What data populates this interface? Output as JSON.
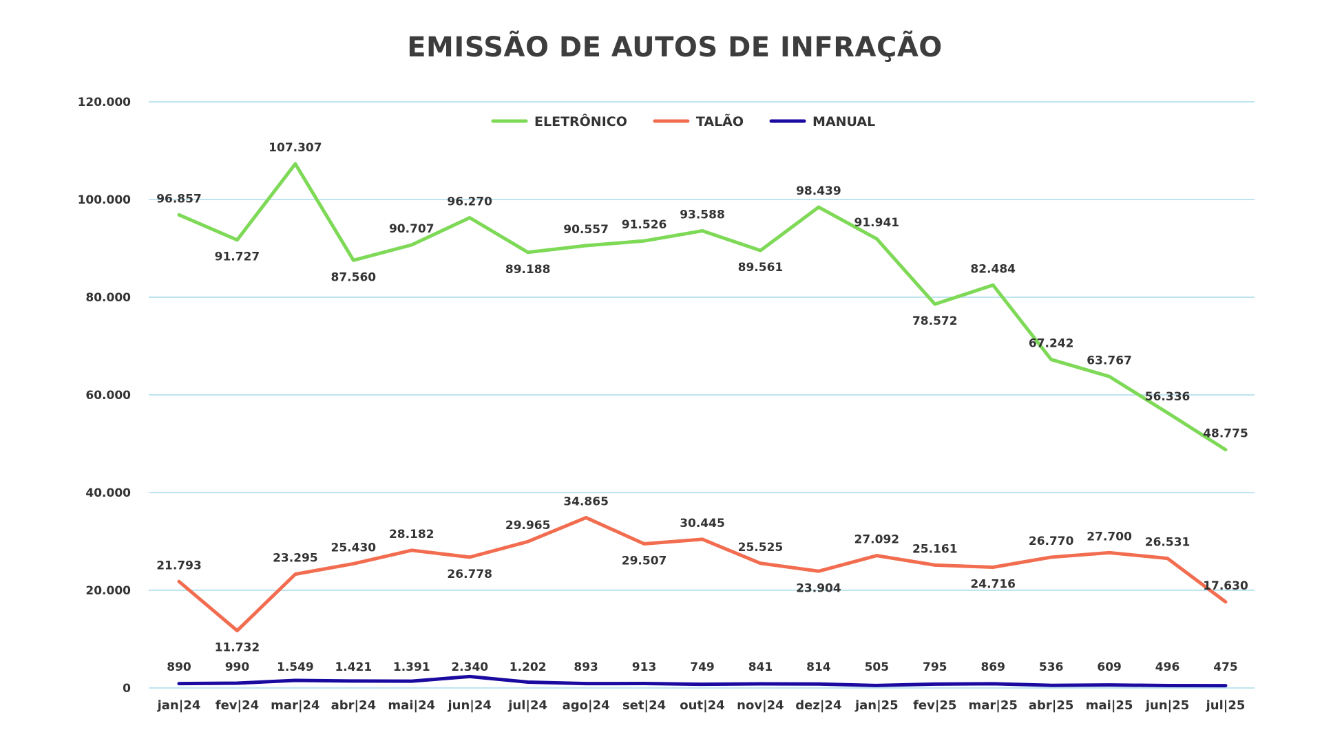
{
  "chart_data": {
    "type": "line",
    "title": "EMISSÃO DE AUTOS DE INFRAÇÃO",
    "xlabel": "",
    "ylabel": "",
    "ylim": [
      0,
      120000
    ],
    "yticks": [
      0,
      20000,
      40000,
      60000,
      80000,
      100000,
      120000
    ],
    "ytick_labels": [
      "0",
      "20.000",
      "40.000",
      "60.000",
      "80.000",
      "100.000",
      "120.000"
    ],
    "grid": true,
    "legend_position": "top-center",
    "categories": [
      "jan|24",
      "fev|24",
      "mar|24",
      "abr|24",
      "mai|24",
      "jun|24",
      "jul|24",
      "ago|24",
      "set|24",
      "out|24",
      "nov|24",
      "dez|24",
      "jan|25",
      "fev|25",
      "mar|25",
      "abr|25",
      "mai|25",
      "jun|25",
      "jul|25"
    ],
    "series": [
      {
        "name": "ELETRÔNICO",
        "color": "#7ed957",
        "values": [
          96857,
          91727,
          107307,
          87560,
          90707,
          96270,
          89188,
          90557,
          91526,
          93588,
          89561,
          98439,
          91941,
          78572,
          82484,
          67242,
          63767,
          56336,
          48775
        ],
        "labels": [
          "96.857",
          "91.727",
          "107.307",
          "87.560",
          "90.707",
          "96.270",
          "89.188",
          "90.557",
          "91.526",
          "93.588",
          "89.561",
          "98.439",
          "91.941",
          "78.572",
          "82.484",
          "67.242",
          "63.767",
          "56.336",
          "48.775"
        ]
      },
      {
        "name": "TALÃO",
        "color": "#f26d50",
        "values": [
          21793,
          11732,
          23295,
          25430,
          28182,
          26778,
          29965,
          34865,
          29507,
          30445,
          25525,
          23904,
          27092,
          25161,
          24716,
          26770,
          27700,
          26531,
          17630
        ],
        "labels": [
          "21.793",
          "11.732",
          "23.295",
          "25.430",
          "28.182",
          "26.778",
          "29.965",
          "34.865",
          "29.507",
          "30.445",
          "25.525",
          "23.904",
          "27.092",
          "25.161",
          "24.716",
          "26.770",
          "27.700",
          "26.531",
          "17.630"
        ]
      },
      {
        "name": "MANUAL",
        "color": "#1a0aa0",
        "values": [
          890,
          990,
          1549,
          1421,
          1391,
          2340,
          1202,
          893,
          913,
          749,
          841,
          814,
          505,
          795,
          869,
          536,
          609,
          496,
          475
        ],
        "labels": [
          "890",
          "990",
          "1.549",
          "1.421",
          "1.391",
          "2.340",
          "1.202",
          "893",
          "913",
          "749",
          "841",
          "814",
          "505",
          "795",
          "869",
          "536",
          "609",
          "496",
          "475"
        ]
      }
    ]
  }
}
